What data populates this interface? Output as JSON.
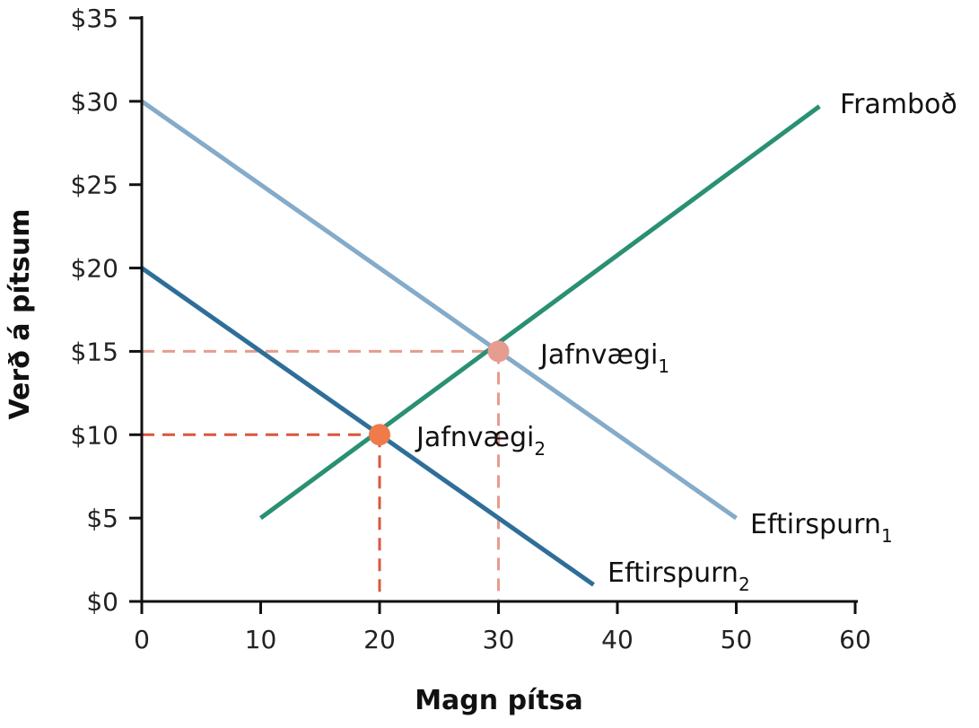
{
  "chart_data": {
    "type": "line",
    "title": "",
    "xlabel": "Magn pítsa",
    "ylabel": "Verð á pítsum",
    "xlim": [
      0,
      60
    ],
    "ylim": [
      0,
      35
    ],
    "x_ticks": [
      0,
      10,
      20,
      30,
      40,
      50,
      60
    ],
    "x_tick_labels": [
      "0",
      "10",
      "20",
      "30",
      "40",
      "50",
      "60"
    ],
    "y_ticks": [
      0,
      5,
      10,
      15,
      20,
      25,
      30,
      35
    ],
    "y_tick_labels": [
      "$0",
      "$5",
      "$10",
      "$15",
      "$20",
      "$25",
      "$30",
      "$35"
    ],
    "grid": false,
    "legend": "none",
    "series": [
      {
        "name": "Framboð",
        "label_main": "Framboð",
        "label_sub": "",
        "color": "#2a9073",
        "points": [
          [
            10,
            5
          ],
          [
            57,
            29.7
          ]
        ]
      },
      {
        "name": "Eftirspurn1",
        "label_main": "Eftirspurn",
        "label_sub": "1",
        "color": "#85abc9",
        "points": [
          [
            0,
            30
          ],
          [
            50,
            5
          ]
        ]
      },
      {
        "name": "Eftirspurn2",
        "label_main": "Eftirspurn",
        "label_sub": "2",
        "color": "#2e6e99",
        "points": [
          [
            0,
            20
          ],
          [
            38,
            1
          ]
        ]
      }
    ],
    "equilibria": [
      {
        "label_main": "Jafnvægi",
        "label_sub": "1",
        "x": 30,
        "y": 15,
        "color": "#e69c8e",
        "line_color": "#e69c8e"
      },
      {
        "label_main": "Jafnvægi",
        "label_sub": "2",
        "x": 20,
        "y": 10,
        "color": "#f07b4a",
        "line_color": "#d9573c"
      }
    ]
  }
}
